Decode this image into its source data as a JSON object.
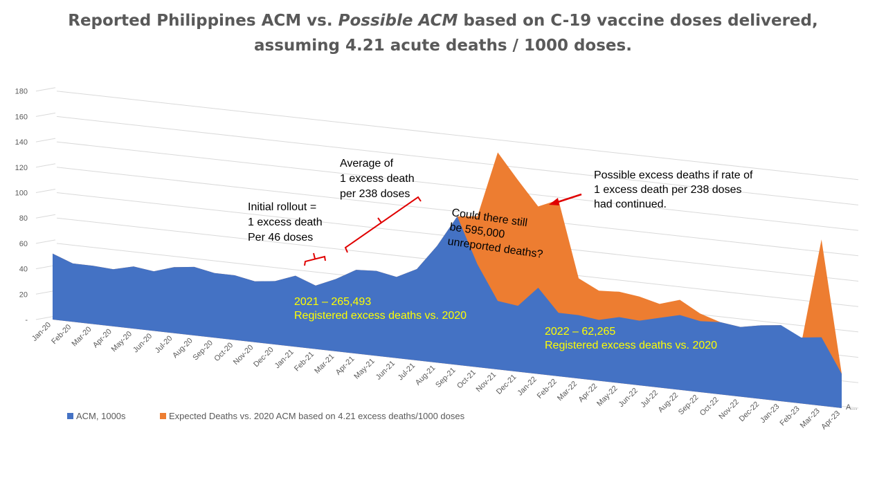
{
  "title": {
    "part1": "Reported Philippines ACM vs. ",
    "part_italic": "Possible  ACM",
    "part2": " based on C-19 vaccine doses delivered,",
    "line2": "assuming 4.21 acute deaths / 1000 doses."
  },
  "colors": {
    "acm": "#4472c4",
    "expected": "#ed7d31",
    "annotation_bracket": "#e00000",
    "highlight_text": "#ffff00"
  },
  "chart_data": {
    "type": "area",
    "categories": [
      "Jan-20",
      "Feb-20",
      "Mar-20",
      "Apr-20",
      "May-20",
      "Jun-20",
      "Jul-20",
      "Aug-20",
      "Sep-20",
      "Oct-20",
      "Nov-20",
      "Dec-20",
      "Jan-21",
      "Feb-21",
      "Mar-21",
      "Apr-21",
      "May-21",
      "Jun-21",
      "Jul-21",
      "Aug-21",
      "Sep-21",
      "Oct-21",
      "Nov-21",
      "Dec-21",
      "Jan-22",
      "Feb-22",
      "Mar-22",
      "Apr-22",
      "May-22",
      "Jun-22",
      "Jul-22",
      "Aug-22",
      "Sep-22",
      "Oct-22",
      "Nov-22",
      "Dec-22",
      "Jan-23",
      "Feb-23",
      "Mar-23",
      "Apr-23"
    ],
    "extra_category": "A...",
    "yticks": [
      {
        "value": 0,
        "label": "-"
      },
      {
        "value": 20,
        "label": "20"
      },
      {
        "value": 40,
        "label": "40"
      },
      {
        "value": 60,
        "label": "60"
      },
      {
        "value": 80,
        "label": "80"
      },
      {
        "value": 100,
        "label": "100"
      },
      {
        "value": 120,
        "label": "120"
      },
      {
        "value": 140,
        "label": "140"
      },
      {
        "value": 160,
        "label": "160"
      },
      {
        "value": 180,
        "label": "180"
      }
    ],
    "ylim": [
      0,
      180
    ],
    "series": [
      {
        "name": "ACM, 1000s",
        "color": "#4472c4",
        "values": [
          52,
          46,
          46,
          45,
          49,
          47,
          52,
          54,
          51,
          51,
          48,
          50,
          56,
          50,
          57,
          66,
          67,
          64,
          72,
          92,
          117,
          81,
          54,
          52,
          68,
          50,
          50,
          48,
          52,
          51,
          55,
          59,
          56,
          57,
          55,
          58,
          60,
          52,
          54,
          27
        ]
      },
      {
        "name": "Expected Deaths vs. 2020 ACM based on 4.21 excess deaths/1000 doses",
        "color": "#ed7d31",
        "values": [
          52,
          46,
          46,
          45,
          49,
          47,
          52,
          54,
          51,
          51,
          48,
          50,
          56,
          50,
          57,
          66,
          67,
          64,
          72,
          92,
          117,
          119,
          171,
          151,
          132,
          139,
          79,
          71,
          72,
          70,
          66,
          71,
          62,
          57,
          55,
          58,
          60,
          47,
          131,
          27
        ]
      }
    ],
    "annotations": {
      "initial_rollout": [
        "Initial rollout =",
        "1 excess death",
        "Per 46 doses"
      ],
      "average": [
        "Average of",
        "1 excess death",
        "per 238 doses"
      ],
      "possible": [
        "Possible excess deaths if rate of",
        "1 excess death per 238 doses",
        "had continued."
      ],
      "unreported": [
        "Could there still",
        "be 595,000",
        "unreported deaths?"
      ],
      "excess_2021": [
        "2021 –  265,493",
        "Registered excess deaths vs. 2020"
      ],
      "excess_2022": [
        "2022 – 62,265",
        "Registered excess deaths vs. 2020"
      ]
    }
  }
}
